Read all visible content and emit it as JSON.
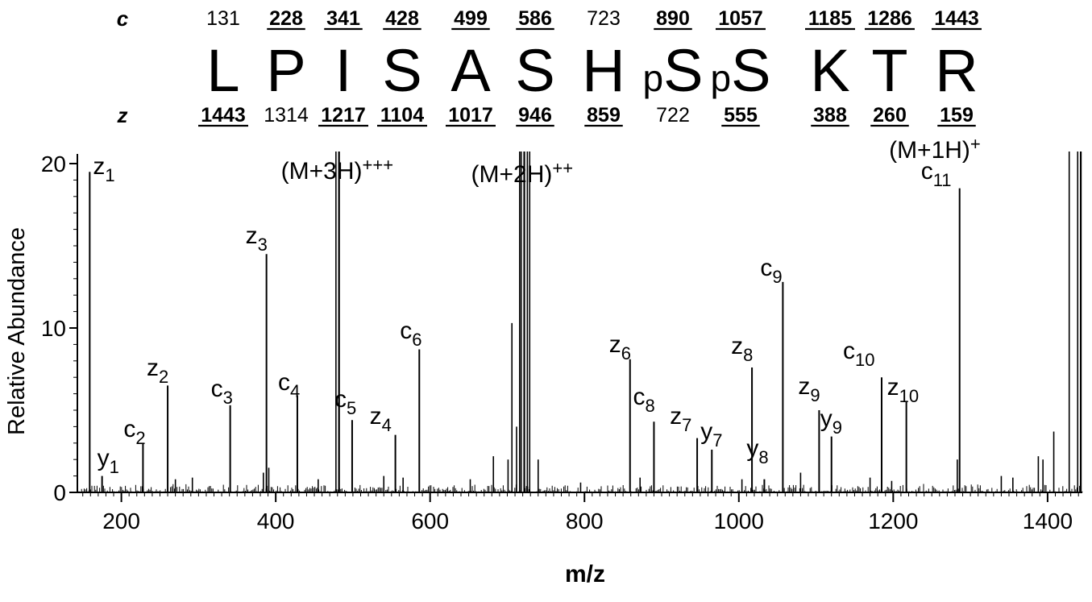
{
  "sequence": {
    "c_label": "c",
    "z_label": "z",
    "residues": [
      {
        "p": "",
        "aa": "L"
      },
      {
        "p": "",
        "aa": "P"
      },
      {
        "p": "",
        "aa": "I"
      },
      {
        "p": "",
        "aa": "S"
      },
      {
        "p": "",
        "aa": "A"
      },
      {
        "p": "",
        "aa": "S"
      },
      {
        "p": "",
        "aa": "H"
      },
      {
        "p": "p",
        "aa": "S"
      },
      {
        "p": "p",
        "aa": "S"
      },
      {
        "p": "",
        "aa": "K"
      },
      {
        "p": "",
        "aa": "T"
      },
      {
        "p": "",
        "aa": "R"
      }
    ],
    "c_ions": [
      {
        "v": "131",
        "obs": false
      },
      {
        "v": "228",
        "obs": true
      },
      {
        "v": "341",
        "obs": true
      },
      {
        "v": "428",
        "obs": true
      },
      {
        "v": "499",
        "obs": true
      },
      {
        "v": "586",
        "obs": true
      },
      {
        "v": "723",
        "obs": false
      },
      {
        "v": "890",
        "obs": true
      },
      {
        "v": "1057",
        "obs": true
      },
      {
        "v": "1185",
        "obs": true
      },
      {
        "v": "1286",
        "obs": true
      },
      {
        "v": "1443",
        "obs": true
      }
    ],
    "z_ions": [
      {
        "v": "1443",
        "obs": true
      },
      {
        "v": "1314",
        "obs": false
      },
      {
        "v": "1217",
        "obs": true
      },
      {
        "v": "1104",
        "obs": true
      },
      {
        "v": "1017",
        "obs": true
      },
      {
        "v": "946",
        "obs": true
      },
      {
        "v": "859",
        "obs": true
      },
      {
        "v": "722",
        "obs": false
      },
      {
        "v": "555",
        "obs": true
      },
      {
        "v": "388",
        "obs": true
      },
      {
        "v": "260",
        "obs": true
      },
      {
        "v": "159",
        "obs": true
      }
    ]
  },
  "chart_data": {
    "type": "bar",
    "title": "",
    "xlabel": "m/z",
    "ylabel": "Relative Abundance",
    "xlim": [
      143,
      1445
    ],
    "ylim": [
      0,
      20
    ],
    "xticks": [
      200,
      400,
      600,
      800,
      1000,
      1200,
      1400
    ],
    "yticks": [
      0,
      10,
      20
    ],
    "labeled_peaks": [
      {
        "ion": "z",
        "sub": "1",
        "x": 159,
        "y": 19.5
      },
      {
        "ion": "y",
        "sub": "1",
        "x": 175,
        "y": 1.0
      },
      {
        "ion": "c",
        "sub": "2",
        "x": 228,
        "y": 3.0
      },
      {
        "ion": "z",
        "sub": "2",
        "x": 260,
        "y": 6.5
      },
      {
        "ion": "c",
        "sub": "3",
        "x": 341,
        "y": 5.3
      },
      {
        "ion": "z",
        "sub": "3",
        "x": 388,
        "y": 14.5
      },
      {
        "ion": "c",
        "sub": "4",
        "x": 428,
        "y": 5.9
      },
      {
        "ion": "c",
        "sub": "5",
        "x": 499,
        "y": 4.4
      },
      {
        "ion": "z",
        "sub": "4",
        "x": 555,
        "y": 3.5
      },
      {
        "ion": "c",
        "sub": "6",
        "x": 586,
        "y": 8.7
      },
      {
        "ion": "z",
        "sub": "6",
        "x": 859,
        "y": 8.1
      },
      {
        "ion": "c",
        "sub": "8",
        "x": 890,
        "y": 4.3
      },
      {
        "ion": "z",
        "sub": "7",
        "x": 946,
        "y": 3.3
      },
      {
        "ion": "y",
        "sub": "7",
        "x": 965,
        "y": 2.6
      },
      {
        "ion": "z",
        "sub": "8",
        "x": 1017,
        "y": 7.6
      },
      {
        "ion": "y",
        "sub": "8",
        "x": 1033,
        "y": 0.8
      },
      {
        "ion": "c",
        "sub": "9",
        "x": 1057,
        "y": 12.8
      },
      {
        "ion": "z",
        "sub": "9",
        "x": 1104,
        "y": 5.0
      },
      {
        "ion": "y",
        "sub": "9",
        "x": 1120,
        "y": 3.4
      },
      {
        "ion": "c",
        "sub": "10",
        "x": 1185,
        "y": 7.0
      },
      {
        "ion": "z",
        "sub": "10",
        "x": 1217,
        "y": 5.5
      },
      {
        "ion": "c",
        "sub": "11",
        "x": 1286,
        "y": 18.5
      }
    ],
    "precursors": [
      {
        "label": "(M+3H)",
        "sup": "+++",
        "x": 482,
        "y": 20
      },
      {
        "label": "(M+2H)",
        "sup": "++",
        "x": 722,
        "y": 20
      },
      {
        "label": "(M+1H)",
        "sup": "+",
        "x": 1443,
        "y": 20
      }
    ],
    "other_peaks": [
      {
        "x": 478,
        "y": 20
      },
      {
        "x": 716,
        "y": 20
      },
      {
        "x": 718,
        "y": 20
      },
      {
        "x": 726,
        "y": 20
      },
      {
        "x": 729,
        "y": 20
      },
      {
        "x": 706,
        "y": 10.3
      },
      {
        "x": 712,
        "y": 4.0
      },
      {
        "x": 701,
        "y": 2.0
      },
      {
        "x": 740,
        "y": 2.0
      },
      {
        "x": 682,
        "y": 2.2
      },
      {
        "x": 1428,
        "y": 20
      },
      {
        "x": 1439,
        "y": 20
      },
      {
        "x": 1408,
        "y": 3.7
      },
      {
        "x": 1388,
        "y": 2.2
      },
      {
        "x": 1394,
        "y": 2.0
      },
      {
        "x": 1340,
        "y": 1.0
      },
      {
        "x": 1080,
        "y": 1.2
      },
      {
        "x": 1283,
        "y": 2.0
      },
      {
        "x": 391,
        "y": 1.5
      },
      {
        "x": 384,
        "y": 1.2
      },
      {
        "x": 270,
        "y": 0.8
      },
      {
        "x": 292,
        "y": 0.9
      },
      {
        "x": 455,
        "y": 0.8
      },
      {
        "x": 540,
        "y": 1.0
      },
      {
        "x": 565,
        "y": 0.9
      },
      {
        "x": 652,
        "y": 0.8
      },
      {
        "x": 795,
        "y": 0.6
      },
      {
        "x": 872,
        "y": 0.9
      },
      {
        "x": 1004,
        "y": 0.8
      },
      {
        "x": 1170,
        "y": 0.9
      },
      {
        "x": 1198,
        "y": 0.7
      },
      {
        "x": 1355,
        "y": 0.9
      }
    ]
  }
}
